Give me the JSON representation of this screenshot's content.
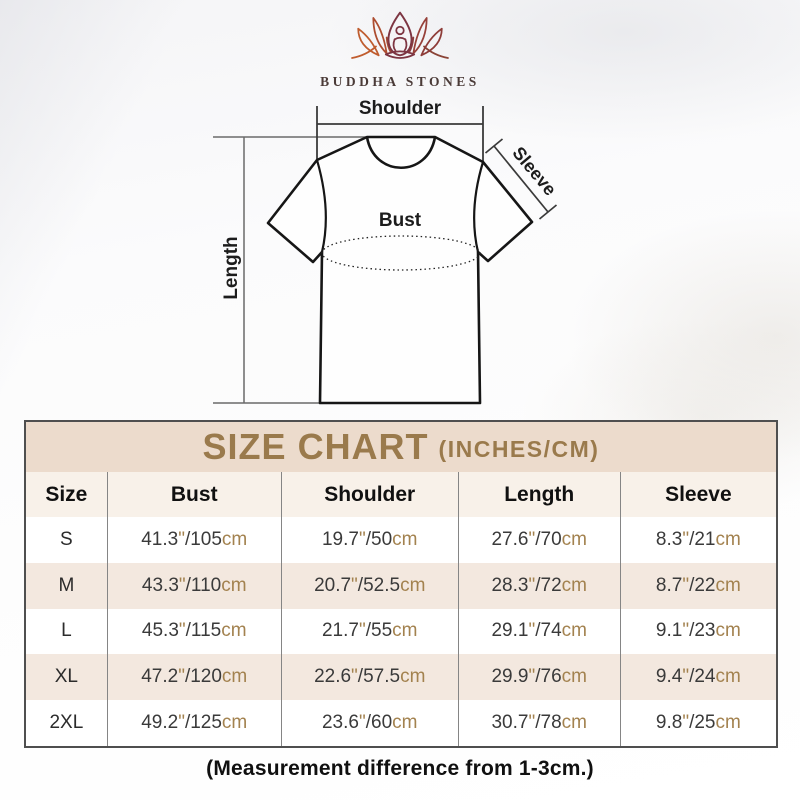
{
  "brand": {
    "name": "BUDDHA STONES"
  },
  "diagram": {
    "shoulder_label": "Shoulder",
    "sleeve_label": "Sleeve",
    "bust_label": "Bust",
    "length_label": "Length"
  },
  "size_chart": {
    "title": "SIZE CHART",
    "subtitle": "(INCHES/CM)",
    "columns": [
      "Size",
      "Bust",
      "Shoulder",
      "Length",
      "Sleeve"
    ],
    "units": {
      "inch_mark": "\"",
      "separator": "/",
      "cm_suffix": "cm"
    },
    "rows": [
      {
        "size": "S",
        "bust": {
          "in": "41.3",
          "cm": "105"
        },
        "shoulder": {
          "in": "19.7",
          "cm": "50"
        },
        "length": {
          "in": "27.6",
          "cm": "70"
        },
        "sleeve": {
          "in": "8.3",
          "cm": "21"
        }
      },
      {
        "size": "M",
        "bust": {
          "in": "43.3",
          "cm": "110"
        },
        "shoulder": {
          "in": "20.7",
          "cm": "52.5"
        },
        "length": {
          "in": "28.3",
          "cm": "72"
        },
        "sleeve": {
          "in": "8.7",
          "cm": "22"
        }
      },
      {
        "size": "L",
        "bust": {
          "in": "45.3",
          "cm": "115"
        },
        "shoulder": {
          "in": "21.7",
          "cm": "55"
        },
        "length": {
          "in": "29.1",
          "cm": "74"
        },
        "sleeve": {
          "in": "9.1",
          "cm": "23"
        }
      },
      {
        "size": "XL",
        "bust": {
          "in": "47.2",
          "cm": "120"
        },
        "shoulder": {
          "in": "22.6",
          "cm": "57.5"
        },
        "length": {
          "in": "29.9",
          "cm": "76"
        },
        "sleeve": {
          "in": "9.4",
          "cm": "24"
        }
      },
      {
        "size": "2XL",
        "bust": {
          "in": "49.2",
          "cm": "125"
        },
        "shoulder": {
          "in": "23.6",
          "cm": "60"
        },
        "length": {
          "in": "30.7",
          "cm": "78"
        },
        "sleeve": {
          "in": "9.8",
          "cm": "25"
        }
      }
    ]
  },
  "footer": {
    "note": "(Measurement difference from 1-3cm.)"
  },
  "colors": {
    "title_gold": "#9a7a4c",
    "band_bg": "#ecdbcc",
    "alt_row_bg": "#f3e8df",
    "unit_tan": "#a3824f",
    "logo_maroon": "#7d3542",
    "logo_orange": "#bf5c2e",
    "shirt_outline": "#161616",
    "measure_line": "#5a5a5a"
  }
}
